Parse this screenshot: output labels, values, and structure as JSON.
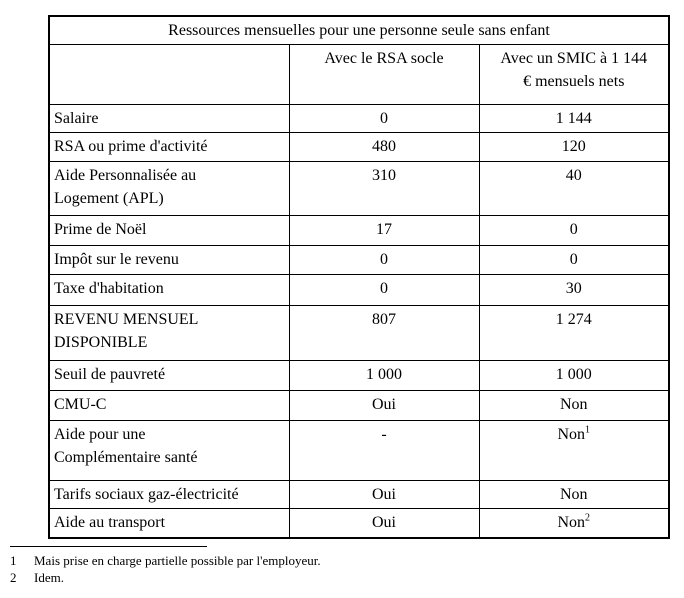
{
  "document": {
    "table": {
      "title": "Ressources mensuelles pour une personne seule sans enfant",
      "column_headers": {
        "label_col": "",
        "rsa": "Avec le RSA socle",
        "smic": "Avec un SMIC à 1 144\n€ mensuels nets"
      },
      "rows": [
        {
          "label": "Salaire",
          "cells": [
            {
              "text": "0"
            },
            {
              "text": "1 144"
            }
          ]
        },
        {
          "label": "RSA ou prime d'activité",
          "cells": [
            {
              "text": "480"
            },
            {
              "text": "120"
            }
          ]
        },
        {
          "label": "Aide Personnalisée au\nLogement (APL)",
          "cells": [
            {
              "text": "310"
            },
            {
              "text": "40"
            }
          ]
        },
        {
          "label": "Prime de Noël",
          "cells": [
            {
              "text": "17"
            },
            {
              "text": "0"
            }
          ]
        },
        {
          "label": "Impôt sur le revenu",
          "cells": [
            {
              "text": "0"
            },
            {
              "text": "0"
            }
          ]
        },
        {
          "label": "Taxe d'habitation",
          "cells": [
            {
              "text": "0"
            },
            {
              "text": "30"
            }
          ]
        },
        {
          "label": "REVENU MENSUEL\nDISPONIBLE",
          "cells": [
            {
              "text": "807"
            },
            {
              "text": "1 274"
            }
          ]
        },
        {
          "label": "Seuil de pauvreté",
          "cells": [
            {
              "text": "1 000"
            },
            {
              "text": "1 000"
            }
          ]
        },
        {
          "label": "CMU-C",
          "cells": [
            {
              "text": "Oui"
            },
            {
              "text": "Non"
            }
          ]
        },
        {
          "label": "Aide pour une\nComplémentaire santé",
          "cells": [
            {
              "text": "-"
            },
            {
              "text": "Non",
              "sup": "1"
            }
          ]
        },
        {
          "label": "Tarifs sociaux gaz-électricité",
          "cells": [
            {
              "text": "Oui"
            },
            {
              "text": "Non"
            }
          ]
        },
        {
          "label": "Aide au transport",
          "cells": [
            {
              "text": "Oui"
            },
            {
              "text": "Non",
              "sup": "2"
            }
          ]
        }
      ]
    },
    "footnotes": [
      {
        "num": "1",
        "text": "Mais prise en charge partielle possible par l'employeur."
      },
      {
        "num": "2",
        "text": "Idem."
      }
    ],
    "text_color": "#000000",
    "border_color": "#000000",
    "background_color": "#ffffff"
  }
}
